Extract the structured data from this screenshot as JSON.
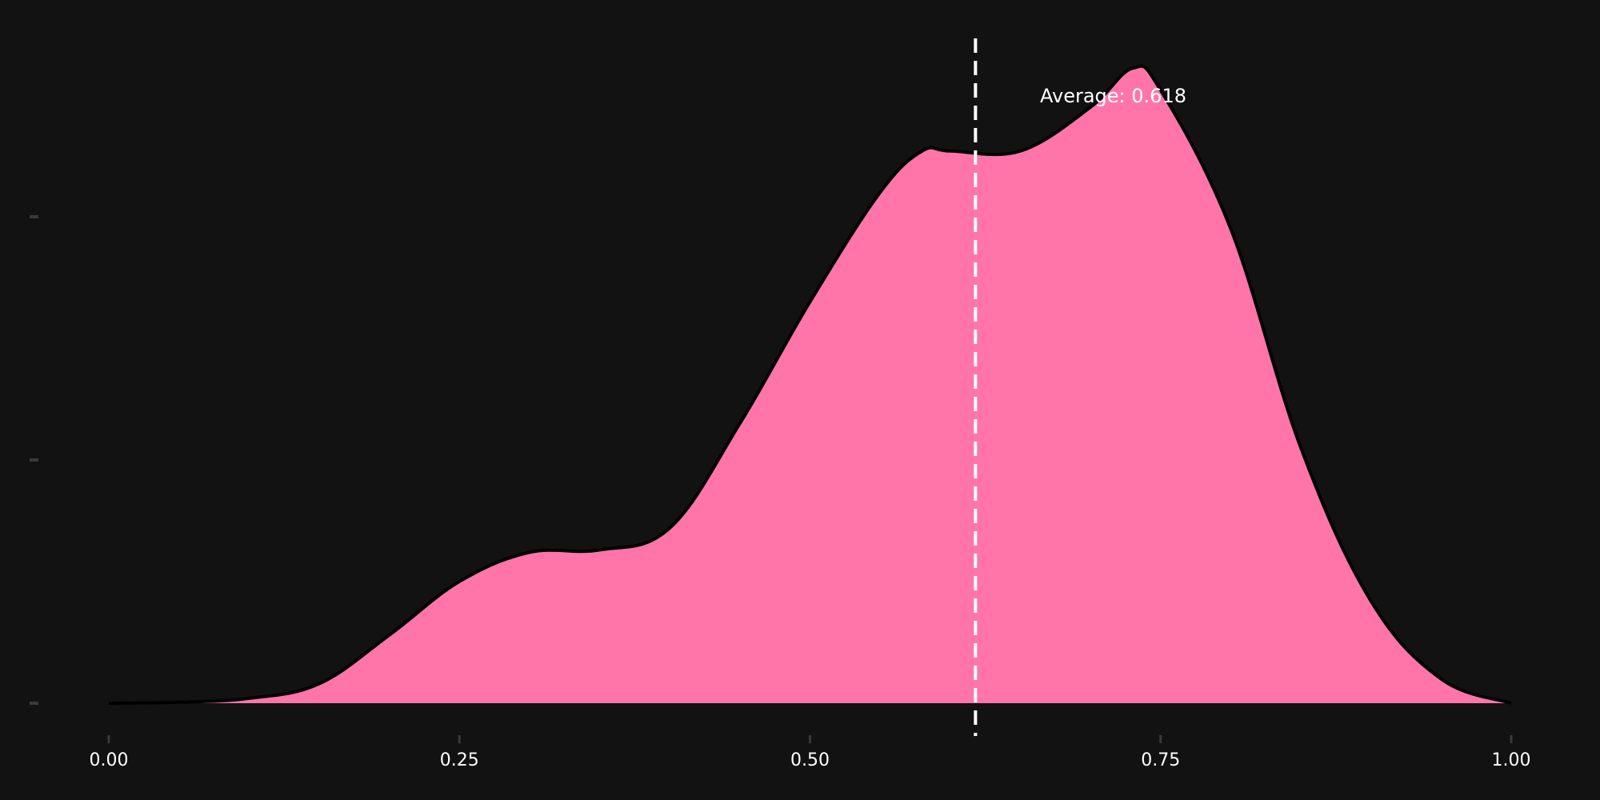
{
  "chart_data": {
    "type": "area",
    "title": "",
    "xlabel": "",
    "ylabel": "",
    "xlim": [
      0,
      1
    ],
    "ylim": [
      0,
      2.7
    ],
    "grid": false,
    "fill_color": "#ff75aa",
    "line_color": "#000000",
    "background": "#121212",
    "x_ticks": [
      "0.00",
      "0.25",
      "0.50",
      "0.75",
      "1.00"
    ],
    "y_ticks": [
      0,
      1,
      2
    ],
    "series": [
      {
        "x": [
          0.0,
          0.05,
          0.1,
          0.15,
          0.2,
          0.25,
          0.3,
          0.35,
          0.4,
          0.45,
          0.5,
          0.55,
          0.58,
          0.6,
          0.65,
          0.7,
          0.73,
          0.75,
          0.8,
          0.85,
          0.9,
          0.95,
          1.0
        ],
        "y": [
          0.0,
          0.004,
          0.02,
          0.08,
          0.28,
          0.5,
          0.62,
          0.63,
          0.72,
          1.15,
          1.65,
          2.1,
          2.27,
          2.27,
          2.27,
          2.45,
          2.61,
          2.52,
          1.95,
          1.05,
          0.42,
          0.1,
          0.0
        ]
      }
    ],
    "average": {
      "value": 0.618,
      "label": "Average: 0.618",
      "line_color": "#ffffff",
      "line_style": "dashed"
    }
  }
}
